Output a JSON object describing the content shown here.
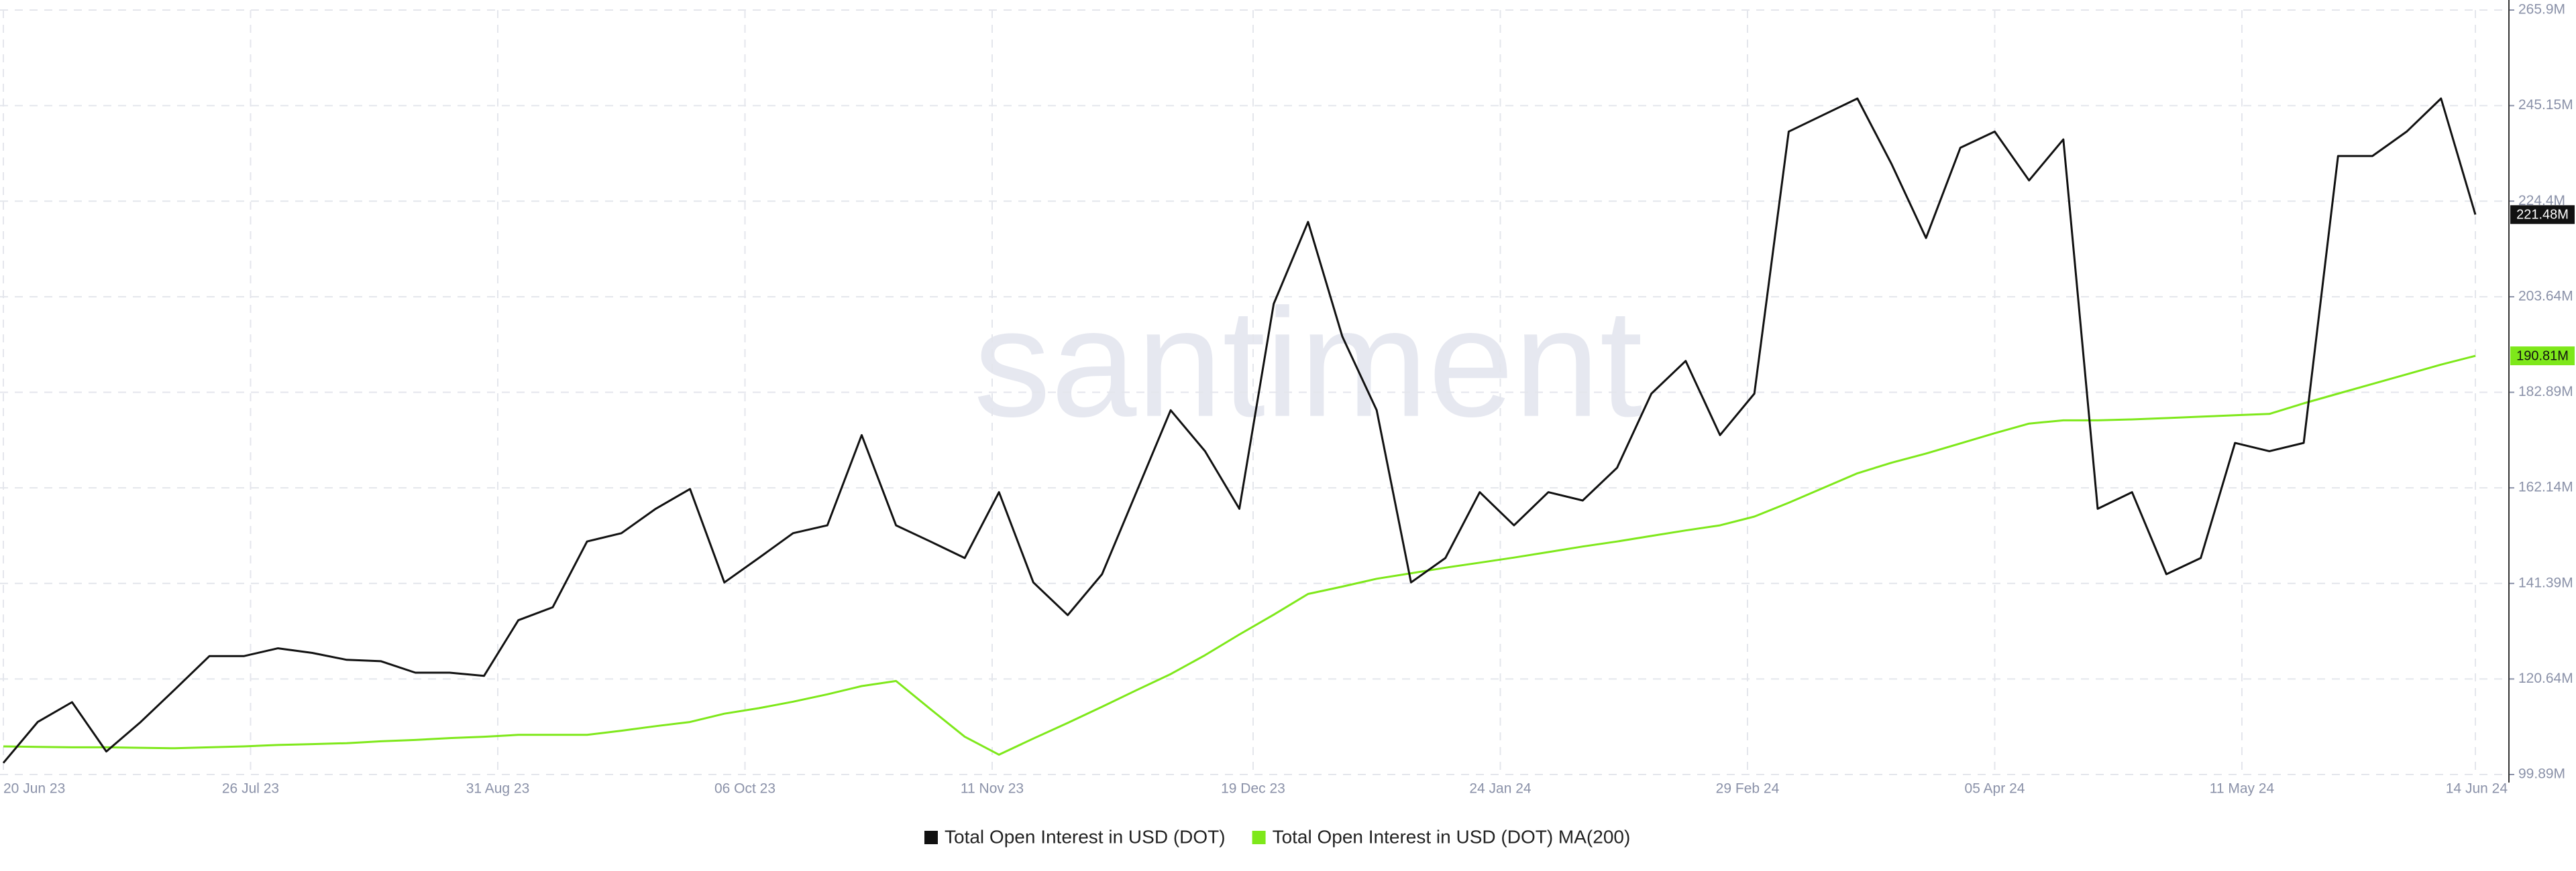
{
  "chart_data": {
    "type": "line",
    "watermark": "santiment",
    "x": [
      "2023-06-20",
      "2023-06-25",
      "2023-06-30",
      "2023-07-05",
      "2023-07-10",
      "2023-07-15",
      "2023-07-20",
      "2023-07-25",
      "2023-07-30",
      "2023-08-04",
      "2023-08-09",
      "2023-08-14",
      "2023-08-19",
      "2023-08-24",
      "2023-08-29",
      "2023-09-03",
      "2023-09-08",
      "2023-09-13",
      "2023-09-18",
      "2023-09-23",
      "2023-09-28",
      "2023-10-03",
      "2023-10-08",
      "2023-10-13",
      "2023-10-18",
      "2023-10-23",
      "2023-10-28",
      "2023-11-02",
      "2023-11-07",
      "2023-11-12",
      "2023-11-17",
      "2023-11-22",
      "2023-11-27",
      "2023-12-02",
      "2023-12-07",
      "2023-12-12",
      "2023-12-17",
      "2023-12-22",
      "2023-12-27",
      "2024-01-01",
      "2024-01-06",
      "2024-01-11",
      "2024-01-16",
      "2024-01-21",
      "2024-01-26",
      "2024-01-31",
      "2024-02-05",
      "2024-02-10",
      "2024-02-15",
      "2024-02-20",
      "2024-02-25",
      "2024-03-01",
      "2024-03-06",
      "2024-03-11",
      "2024-03-16",
      "2024-03-21",
      "2024-03-26",
      "2024-03-31",
      "2024-04-05",
      "2024-04-10",
      "2024-04-15",
      "2024-04-20",
      "2024-04-25",
      "2024-04-30",
      "2024-05-05",
      "2024-05-10",
      "2024-05-15",
      "2024-05-20",
      "2024-05-25",
      "2024-05-30",
      "2024-06-04",
      "2024-06-09",
      "2024-06-14"
    ],
    "series": [
      {
        "name": "Total Open Interest in USD (DOT)",
        "color": "#111111",
        "values": [
          102.4,
          111.3,
          115.6,
          104.9,
          111.3,
          118.4,
          125.6,
          125.6,
          127.3,
          126.3,
          124.8,
          124.5,
          122.0,
          122.0,
          121.3,
          133.4,
          136.2,
          150.5,
          152.3,
          157.6,
          161.9,
          141.6,
          146.9,
          152.3,
          154.0,
          173.6,
          154.0,
          150.5,
          146.9,
          161.2,
          141.6,
          134.5,
          143.4,
          161.2,
          179.0,
          170.1,
          157.6,
          202.1,
          219.9,
          195.0,
          179.0,
          141.6,
          146.9,
          161.2,
          154.0,
          161.2,
          159.4,
          166.5,
          182.6,
          189.7,
          173.6,
          182.6,
          239.5,
          243.1,
          246.7,
          232.4,
          216.4,
          236.0,
          239.5,
          228.9,
          237.8,
          157.6,
          161.2,
          143.4,
          146.9,
          171.9,
          170.1,
          171.9,
          234.2,
          234.2,
          239.5,
          246.7,
          221.48
        ],
        "value_labels": {
          "72": "221.48M"
        }
      },
      {
        "name": "Total Open Interest in USD (DOT) MA(200)",
        "color": "#7ee81a",
        "values": [
          106.0,
          105.9,
          105.8,
          105.8,
          105.7,
          105.6,
          105.8,
          106.0,
          106.3,
          106.5,
          106.7,
          107.1,
          107.4,
          107.8,
          108.1,
          108.5,
          108.5,
          108.5,
          109.4,
          110.4,
          111.3,
          113.1,
          114.3,
          115.7,
          117.3,
          119.1,
          120.2,
          114.1,
          108.1,
          104.2,
          107.7,
          111.1,
          114.6,
          118.2,
          121.7,
          125.8,
          130.3,
          134.6,
          139.1,
          140.7,
          142.4,
          143.6,
          144.8,
          145.9,
          147.0,
          148.2,
          149.4,
          150.5,
          151.7,
          152.9,
          154.0,
          155.9,
          158.9,
          162.1,
          165.3,
          167.6,
          169.6,
          171.8,
          174.0,
          176.1,
          176.8,
          176.8,
          177.0,
          177.3,
          177.6,
          177.9,
          178.2,
          180.5,
          182.6,
          184.7,
          186.8,
          188.9,
          190.81
        ],
        "value_labels": {
          "72": "190.81M"
        }
      }
    ],
    "xlim": [
      "2023-06-20",
      "2024-06-14"
    ],
    "xticks": [
      {
        "value": "2023-06-20",
        "label": "20 Jun 23"
      },
      {
        "value": "2023-07-26",
        "label": "26 Jul 23"
      },
      {
        "value": "2023-08-31",
        "label": "31 Aug 23"
      },
      {
        "value": "2023-10-06",
        "label": "06 Oct 23"
      },
      {
        "value": "2023-11-11",
        "label": "11 Nov 23"
      },
      {
        "value": "2023-12-19",
        "label": "19 Dec 23"
      },
      {
        "value": "2024-01-24",
        "label": "24 Jan 24"
      },
      {
        "value": "2024-02-29",
        "label": "29 Feb 24"
      },
      {
        "value": "2024-04-05",
        "label": "05 Apr 24"
      },
      {
        "value": "2024-05-11",
        "label": "11 May 24"
      },
      {
        "value": "2024-06-14",
        "label": "14 Jun 24"
      }
    ],
    "ylim": [
      99.89,
      265.9
    ],
    "yticks": [
      {
        "value": 99.89,
        "label": "99.89M"
      },
      {
        "value": 120.64,
        "label": "120.64M"
      },
      {
        "value": 141.39,
        "label": "141.39M"
      },
      {
        "value": 162.14,
        "label": "162.14M"
      },
      {
        "value": 182.89,
        "label": "182.89M"
      },
      {
        "value": 203.64,
        "label": "203.64M"
      },
      {
        "value": 224.4,
        "label": "224.4M"
      },
      {
        "value": 245.15,
        "label": "245.15M"
      },
      {
        "value": 265.9,
        "label": "265.9M"
      }
    ],
    "grid": true,
    "legend": "bottom"
  }
}
